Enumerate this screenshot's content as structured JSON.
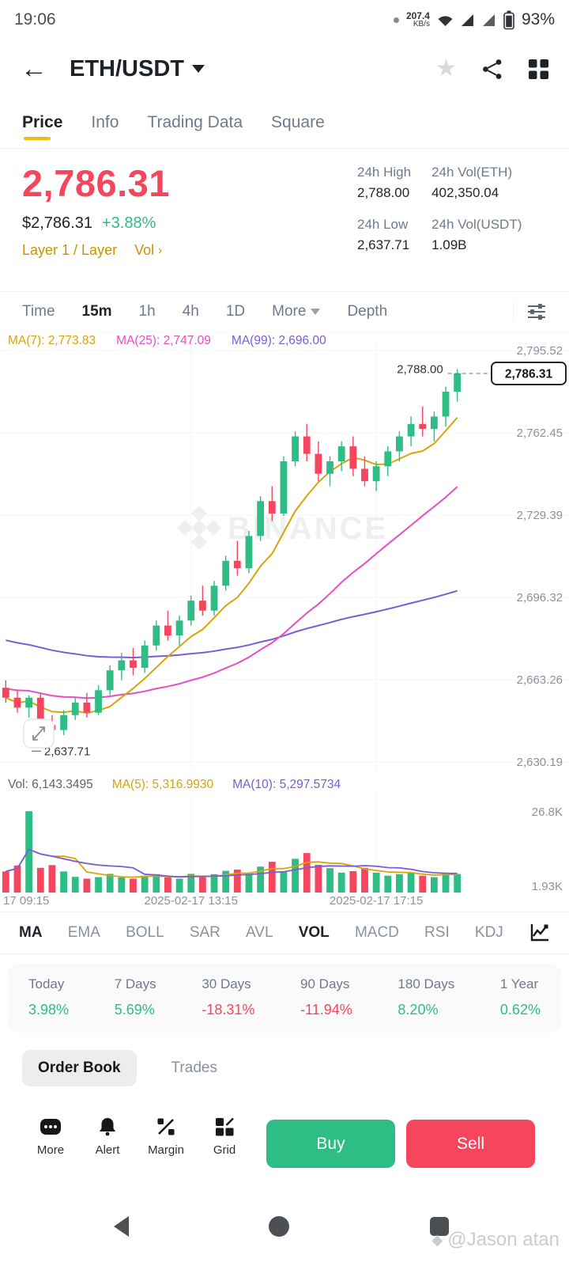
{
  "colors": {
    "up": "#2EBD85",
    "down": "#F6465D",
    "brand_yellow": "#F0B90B",
    "link_yellow": "#C99400",
    "ma7": "#D9A40A",
    "ma25": "#E44FC3",
    "ma99": "#7D5BD6",
    "grid": "#f3f4f6",
    "axis_text": "#8a929e"
  },
  "status_bar": {
    "time": "19:06",
    "net_speed": "207.4",
    "net_unit": "KB/s",
    "battery_pct": "93%"
  },
  "header": {
    "pair": "ETH/USDT"
  },
  "nav_tabs": {
    "items": [
      {
        "label": "Price"
      },
      {
        "label": "Info"
      },
      {
        "label": "Trading Data"
      },
      {
        "label": "Square"
      }
    ]
  },
  "price_panel": {
    "last_price": "2,786.31",
    "fiat_price": "$2,786.31",
    "change_pct": "+3.88%",
    "tags": "Layer 1 / Layer",
    "vol_link": "Vol",
    "vol_chevron": "›",
    "stats": [
      {
        "label": "24h High",
        "value": "2,788.00"
      },
      {
        "label": "24h Low",
        "value": "2,637.71"
      },
      {
        "label": "24h Vol(ETH)",
        "value": "402,350.04"
      },
      {
        "label": "24h Vol(USDT)",
        "value": "1.09B"
      }
    ]
  },
  "timeframe_bar": {
    "items": [
      {
        "label": "Time"
      },
      {
        "label": "15m"
      },
      {
        "label": "1h"
      },
      {
        "label": "4h"
      },
      {
        "label": "1D"
      },
      {
        "label": "More"
      },
      {
        "label": "Depth"
      }
    ]
  },
  "chart": {
    "ma_legend": [
      {
        "label": "MA(7): 2,773.83"
      },
      {
        "label": "MA(25): 2,747.09"
      },
      {
        "label": "MA(99): 2,696.00"
      }
    ],
    "y_labels": [
      "2,795.52",
      "2,762.45",
      "2,729.39",
      "2,696.32",
      "2,663.26",
      "2,630.19"
    ],
    "high_label": "2,788.00",
    "low_label": "2,637.71",
    "current_price": "2,786.31",
    "watermark": "BINANCE",
    "x_labels": [
      "17 09:15",
      "2025-02-17 13:15",
      "2025-02-17 17:15"
    ]
  },
  "volume": {
    "legend_vol": "Vol: 6,143.3495",
    "legend_ma5": "MA(5): 5,316.9930",
    "legend_ma10": "MA(10): 5,297.5734",
    "y_labels": [
      "26.8K",
      "1.93K"
    ]
  },
  "chart_data": {
    "type": "candlestick",
    "symbol": "ETH/USDT",
    "interval": "15m",
    "price_axis": [
      2795.52,
      2762.45,
      2729.39,
      2696.32,
      2663.26,
      2630.19
    ],
    "volume_axis": [
      26800,
      1930
    ],
    "time_gridlines": [
      16,
      32
    ],
    "current": 2786.31,
    "day_high": 2788.0,
    "day_low": 2637.71,
    "candles": [
      [
        2660,
        2663,
        2654,
        2656
      ],
      [
        2656,
        2659,
        2650,
        2652
      ],
      [
        2652,
        2657,
        2648,
        2656
      ],
      [
        2656,
        2658,
        2642,
        2645
      ],
      [
        2645,
        2649,
        2637.71,
        2643
      ],
      [
        2643,
        2651,
        2641,
        2649
      ],
      [
        2649,
        2656,
        2647,
        2654
      ],
      [
        2654,
        2658,
        2648,
        2650
      ],
      [
        2650,
        2661,
        2649,
        2659
      ],
      [
        2659,
        2669,
        2657,
        2667
      ],
      [
        2667,
        2674,
        2663,
        2671
      ],
      [
        2671,
        2676,
        2665,
        2668
      ],
      [
        2668,
        2679,
        2666,
        2677
      ],
      [
        2677,
        2687,
        2675,
        2685
      ],
      [
        2685,
        2691,
        2679,
        2681
      ],
      [
        2681,
        2689,
        2677,
        2687
      ],
      [
        2687,
        2697,
        2685,
        2695
      ],
      [
        2695,
        2701,
        2689,
        2691
      ],
      [
        2691,
        2703,
        2689,
        2701
      ],
      [
        2701,
        2713,
        2699,
        2711
      ],
      [
        2711,
        2719,
        2705,
        2708
      ],
      [
        2708,
        2723,
        2706,
        2721
      ],
      [
        2721,
        2737,
        2719,
        2735
      ],
      [
        2735,
        2741,
        2727,
        2730
      ],
      [
        2730,
        2753,
        2729,
        2751
      ],
      [
        2751,
        2763,
        2749,
        2761
      ],
      [
        2761,
        2766,
        2751,
        2754
      ],
      [
        2754,
        2759,
        2743,
        2746
      ],
      [
        2746,
        2753,
        2741,
        2751
      ],
      [
        2751,
        2759,
        2747,
        2757
      ],
      [
        2757,
        2761,
        2745,
        2748
      ],
      [
        2748,
        2753,
        2741,
        2743
      ],
      [
        2743,
        2751,
        2739,
        2749
      ],
      [
        2749,
        2757,
        2745,
        2755
      ],
      [
        2755,
        2763,
        2751,
        2761
      ],
      [
        2761,
        2769,
        2757,
        2766
      ],
      [
        2766,
        2773,
        2761,
        2764
      ],
      [
        2764,
        2771,
        2759,
        2769
      ],
      [
        2769,
        2781,
        2765,
        2779
      ],
      [
        2779,
        2788,
        2775,
        2786.31
      ]
    ],
    "volumes": [
      7000,
      9000,
      27000,
      8200,
      9100,
      7000,
      5200,
      4600,
      5100,
      6200,
      5000,
      4600,
      5600,
      6100,
      5000,
      4600,
      6200,
      5100,
      6100,
      7200,
      7600,
      6200,
      8600,
      10200,
      7100,
      11200,
      13100,
      9200,
      8100,
      6600,
      7100,
      8200,
      6600,
      5600,
      6100,
      6600,
      5600,
      5100,
      6600,
      6143
    ]
  },
  "indicator_bar": {
    "items": [
      {
        "label": "MA"
      },
      {
        "label": "EMA"
      },
      {
        "label": "BOLL"
      },
      {
        "label": "SAR"
      },
      {
        "label": "AVL"
      },
      {
        "label": "VOL"
      },
      {
        "label": "MACD"
      },
      {
        "label": "RSI"
      },
      {
        "label": "KDJ"
      }
    ]
  },
  "performance": {
    "items": [
      {
        "label": "Today",
        "value": "3.98%",
        "dir": "up"
      },
      {
        "label": "7 Days",
        "value": "5.69%",
        "dir": "up"
      },
      {
        "label": "30 Days",
        "value": "-18.31%",
        "dir": "down"
      },
      {
        "label": "90 Days",
        "value": "-11.94%",
        "dir": "down"
      },
      {
        "label": "180 Days",
        "value": "8.20%",
        "dir": "up"
      },
      {
        "label": "1 Year",
        "value": "0.62%",
        "dir": "up"
      }
    ]
  },
  "book_tabs": {
    "order_book": "Order Book",
    "trades": "Trades"
  },
  "actions": {
    "items": [
      {
        "label": "More"
      },
      {
        "label": "Alert"
      },
      {
        "label": "Margin"
      },
      {
        "label": "Grid"
      }
    ],
    "buy": "Buy",
    "sell": "Sell"
  },
  "credit": "@Jason atan"
}
